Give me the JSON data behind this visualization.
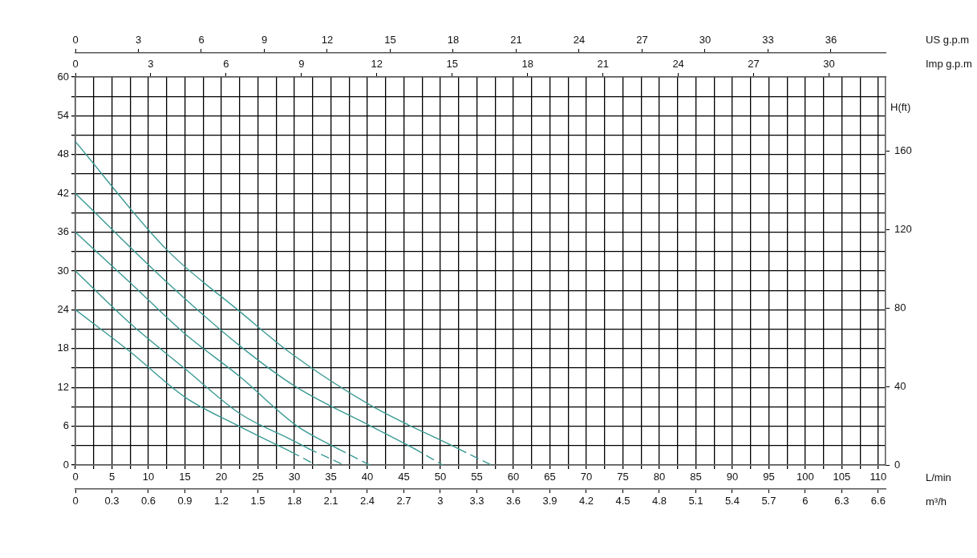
{
  "chart_data": [
    {
      "type": "line",
      "xlabel": "L/min",
      "x2label": "Imp g.p.m",
      "y2label": "H(ft)",
      "grid": true,
      "marker": "none",
      "xlim": [
        0,
        111
      ],
      "xticks": [
        0,
        {
          "value": 2.5,
          "label": null
        },
        5,
        {
          "value": 7.5,
          "label": null
        },
        10,
        {
          "value": 12.5,
          "label": null
        },
        15,
        {
          "value": 17.5,
          "label": null
        },
        20,
        {
          "value": 22.5,
          "label": null
        },
        25,
        {
          "value": 27.5,
          "label": null
        },
        30,
        {
          "value": 32.5,
          "label": null
        },
        35,
        {
          "value": 37.5,
          "label": null
        },
        40,
        {
          "value": 42.5,
          "label": null
        },
        45,
        {
          "value": 47.5,
          "label": null
        },
        50,
        {
          "value": 52.5,
          "label": null
        },
        55,
        {
          "value": 57.5,
          "label": null
        },
        60,
        {
          "value": 62.5,
          "label": null
        },
        65,
        {
          "value": 67.5,
          "label": null
        },
        70,
        {
          "value": 72.5,
          "label": null
        },
        75,
        {
          "value": 77.5,
          "label": null
        },
        80,
        {
          "value": 82.5,
          "label": null
        },
        85,
        {
          "value": 87.5,
          "label": null
        },
        90,
        {
          "value": 92.5,
          "label": null
        },
        95,
        {
          "value": 97.5,
          "label": null
        },
        100,
        {
          "value": 102.5,
          "label": null
        },
        105,
        {
          "value": 107.5,
          "label": null
        },
        110
      ],
      "x2lim": [
        0,
        32.25
      ],
      "x2ticks": [
        0,
        3,
        6,
        9,
        12,
        15,
        18,
        21,
        24,
        27,
        30
      ],
      "ylim": [
        0,
        60
      ],
      "yticks": [
        0,
        {
          "value": 3,
          "label": null
        },
        6,
        {
          "value": 9,
          "label": null
        },
        12,
        {
          "value": 15,
          "label": null
        },
        18,
        {
          "value": 21,
          "label": null
        },
        24,
        {
          "value": 27,
          "label": null
        },
        30,
        {
          "value": 33,
          "label": null
        },
        36,
        {
          "value": 39,
          "label": null
        },
        42,
        {
          "value": 45,
          "label": null
        },
        48,
        {
          "value": 51,
          "label": null
        },
        54,
        {
          "value": 57,
          "label": null
        },
        60
      ],
      "y2lim": [
        0,
        198
      ],
      "y2ticks": [
        0,
        40,
        80,
        120,
        160
      ],
      "series": [
        {
          "color": "#3a9a94",
          "x": [
            0,
            7.4,
            15,
            22.6,
            30.4,
            36
          ],
          "values": [
            36,
            28.3,
            20.3,
            13.6,
            6,
            2.5
          ]
        },
        {
          "color": "#3a9a94",
          "line_style": "dashed",
          "x": [
            36,
            40.3
          ],
          "values": [
            2.5,
            0
          ]
        },
        {
          "color": "#3a9a94",
          "x": [
            0,
            7.4,
            15,
            22.6,
            29.6,
            32
          ],
          "values": [
            30,
            22,
            14.9,
            7.9,
            3.9,
            2.5
          ]
        },
        {
          "color": "#3a9a94",
          "line_style": "dashed",
          "x": [
            32,
            36.8
          ],
          "values": [
            2.5,
            0
          ]
        },
        {
          "color": "#3a9a94",
          "x": [
            0,
            7.4,
            15,
            22.6,
            29.6
          ],
          "values": [
            24,
            17.6,
            10.5,
            5.9,
            2
          ]
        },
        {
          "color": "#3a9a94",
          "line_style": "dashed",
          "x": [
            29.6,
            33
          ],
          "values": [
            2,
            0
          ]
        }
      ]
    },
    {
      "type": "line",
      "xlabel": "m³/h",
      "x2label": "US g.p.m",
      "tick_labels": "x",
      "marker": "none",
      "xlim": [
        0,
        6.66
      ],
      "xticks": [
        0,
        0.3,
        0.6,
        0.9,
        1.2,
        1.5,
        1.8,
        2.1,
        2.4,
        2.7,
        3,
        3.3,
        3.6,
        3.9,
        4.2,
        4.5,
        4.8,
        5.1,
        5.4,
        5.7,
        6,
        6.3,
        6.6
      ],
      "x2lim": [
        0,
        38.6
      ],
      "x2ticks": [
        0,
        3,
        6,
        9,
        12,
        15,
        18,
        21,
        24,
        27,
        30,
        33,
        36
      ],
      "ylim": [
        0,
        60
      ],
      "series": [
        {
          "color": "#3a9a94",
          "x": [
            0,
            0.75,
            1.36,
            1.77,
            2.43,
            3.15
          ],
          "values": [
            50,
            33.3,
            23.6,
            17.3,
            9.2,
            2.5
          ]
        },
        {
          "color": "#3a9a94",
          "line_style": "dashed",
          "x": [
            3.15,
            3.42
          ],
          "values": [
            2.5,
            0
          ]
        },
        {
          "color": "#3a9a94",
          "x": [
            0,
            0.75,
            1.36,
            1.82,
            2.43,
            2.79
          ],
          "values": [
            42,
            28.3,
            18.3,
            12,
            6,
            2.5
          ]
        },
        {
          "color": "#3a9a94",
          "line_style": "dashed",
          "x": [
            2.79,
            3.02
          ],
          "values": [
            2.5,
            0
          ]
        }
      ]
    }
  ]
}
